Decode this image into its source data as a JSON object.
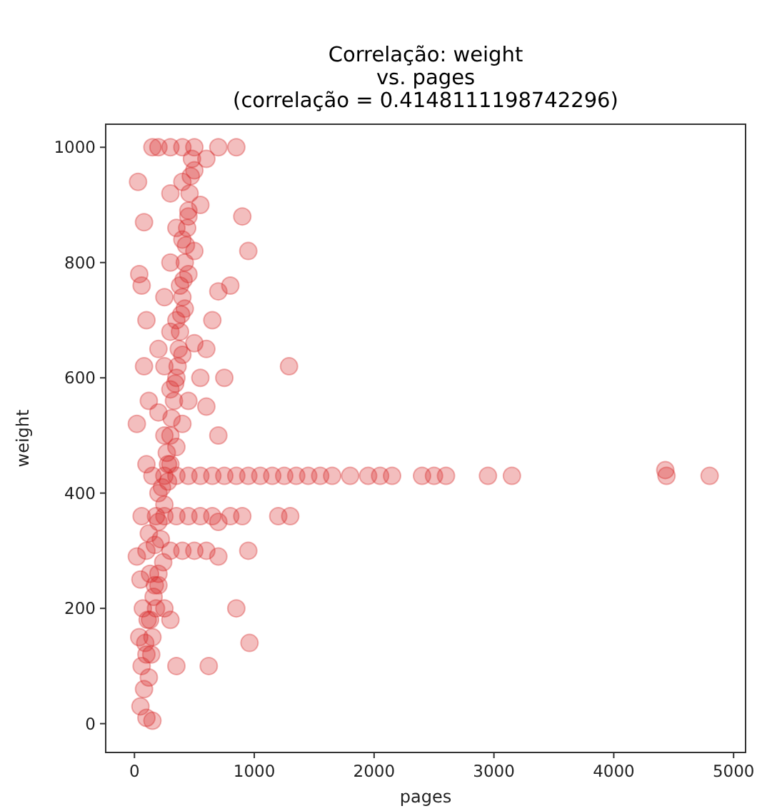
{
  "chart_data": {
    "type": "scatter",
    "title": "Correlação: weight\nvs. pages\n(correlação = 0.4148111198742296)",
    "xlabel": "pages",
    "ylabel": "weight",
    "marker": "circle",
    "xlim": [
      -240,
      5100
    ],
    "ylim": [
      -50,
      1040
    ],
    "xticks": [
      0,
      1000,
      2000,
      3000,
      4000,
      5000
    ],
    "yticks": [
      0,
      200,
      400,
      600,
      800,
      1000
    ],
    "series": [
      {
        "color": "#d62728",
        "x": [
          150,
          100,
          50,
          80,
          60,
          120,
          40,
          90,
          140,
          70,
          110,
          160,
          50,
          130,
          200,
          20,
          100,
          170,
          240,
          300,
          400,
          500,
          600,
          700,
          950,
          250,
          300,
          350,
          120,
          180,
          250,
          350,
          450,
          550,
          650,
          800,
          900,
          1200,
          1300,
          60,
          200,
          280,
          150,
          250,
          350,
          450,
          550,
          650,
          750,
          850,
          950,
          1050,
          1150,
          1250,
          1350,
          1450,
          1550,
          1650,
          1800,
          1950,
          2050,
          2150,
          2400,
          2500,
          2600,
          2950,
          3150,
          4430,
          4440,
          4800,
          1290,
          960,
          850,
          620,
          700,
          300,
          350,
          250,
          400,
          200,
          450,
          300,
          350,
          250,
          400,
          500,
          300,
          350,
          420,
          250,
          380,
          450,
          300,
          200,
          100,
          60,
          40,
          550,
          600,
          650,
          700,
          800,
          500,
          400,
          350,
          450,
          550,
          300,
          400,
          500,
          600,
          300,
          400,
          500,
          700,
          850,
          200,
          150,
          30,
          80,
          900,
          950,
          750,
          600,
          80,
          20,
          100,
          700,
          120,
          150,
          180,
          200,
          220,
          250,
          280,
          300,
          330,
          360,
          380,
          400,
          420,
          440,
          460,
          480,
          200,
          230,
          270,
          310,
          340,
          370,
          390,
          410,
          430,
          450,
          470,
          100,
          130,
          170
        ],
        "values": [
          5,
          10,
          30,
          60,
          100,
          80,
          150,
          140,
          120,
          200,
          180,
          220,
          250,
          260,
          240,
          290,
          300,
          310,
          280,
          300,
          300,
          300,
          300,
          290,
          300,
          200,
          180,
          100,
          330,
          360,
          360,
          360,
          360,
          360,
          360,
          360,
          360,
          360,
          360,
          360,
          400,
          420,
          430,
          430,
          430,
          430,
          430,
          430,
          430,
          430,
          430,
          430,
          430,
          430,
          430,
          430,
          430,
          430,
          430,
          430,
          430,
          430,
          430,
          430,
          430,
          430,
          430,
          440,
          430,
          430,
          620,
          140,
          200,
          100,
          350,
          450,
          480,
          500,
          520,
          540,
          560,
          580,
          600,
          620,
          640,
          660,
          680,
          700,
          720,
          740,
          760,
          780,
          800,
          650,
          700,
          760,
          780,
          600,
          650,
          700,
          750,
          760,
          820,
          840,
          860,
          880,
          900,
          920,
          940,
          960,
          980,
          1000,
          1000,
          1000,
          1000,
          1000,
          1000,
          1000,
          940,
          870,
          880,
          820,
          600,
          550,
          620,
          520,
          450,
          500,
          560,
          150,
          200,
          260,
          320,
          380,
          450,
          500,
          560,
          620,
          680,
          740,
          800,
          860,
          920,
          980,
          350,
          410,
          470,
          530,
          590,
          650,
          710,
          770,
          830,
          890,
          950,
          120,
          180,
          240
        ]
      }
    ]
  }
}
